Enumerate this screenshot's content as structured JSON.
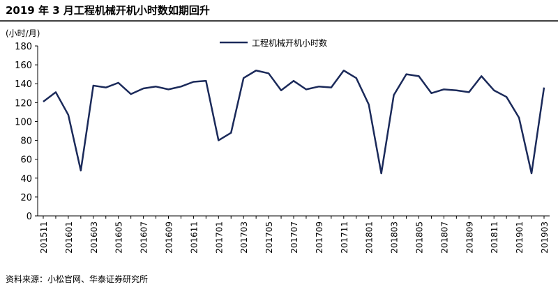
{
  "chart_data": {
    "type": "line",
    "title": "2019 年 3 月工程机械开机小时数如期回升",
    "y_label": "(小时/月)",
    "source": "资料来源：小松官网、华泰证券研究所",
    "categories": [
      "201511",
      null,
      "201601",
      null,
      "201603",
      null,
      "201605",
      null,
      "201607",
      null,
      "201609",
      null,
      "201611",
      null,
      "201701",
      null,
      "201703",
      null,
      "201705",
      null,
      "201707",
      null,
      "201709",
      null,
      "201711",
      null,
      "201801",
      null,
      "201803",
      null,
      "201805",
      null,
      "201807",
      null,
      "201809",
      null,
      "201811",
      null,
      "201901",
      null,
      "201903"
    ],
    "series": [
      {
        "name": "工程机械开机小时数",
        "color": "#1b2a5a",
        "values": [
          121,
          131,
          107,
          48,
          138,
          136,
          141,
          129,
          135,
          137,
          134,
          137,
          142,
          143,
          80,
          88,
          146,
          154,
          151,
          133,
          143,
          134,
          137,
          136,
          154,
          146,
          118,
          45,
          128,
          150,
          148,
          130,
          134,
          133,
          131,
          148,
          133,
          126,
          104,
          45,
          136
        ]
      }
    ],
    "ylim": [
      0,
      180
    ],
    "yticks": [
      0,
      20,
      40,
      60,
      80,
      100,
      120,
      140,
      160,
      180
    ],
    "grid": false,
    "legend": "top"
  }
}
